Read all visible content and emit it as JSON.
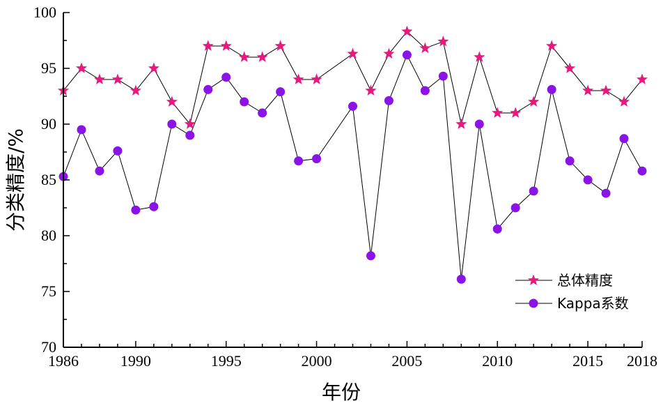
{
  "chart_data": {
    "type": "line",
    "title": "",
    "xlabel": "年份",
    "ylabel": "分类精度/%",
    "xlim": [
      1986,
      2018
    ],
    "ylim": [
      70,
      100
    ],
    "x_ticks": [
      1986,
      1990,
      1995,
      2000,
      2005,
      2010,
      2015,
      2018
    ],
    "y_ticks": [
      70,
      75,
      80,
      85,
      90,
      95,
      100
    ],
    "grid": false,
    "legend_position": "bottom-right",
    "series": [
      {
        "name": "总体精度",
        "marker": "star",
        "color": "#e8197d",
        "points": [
          [
            1986,
            93
          ],
          [
            1987,
            95
          ],
          [
            1988,
            94
          ],
          [
            1989,
            94
          ],
          [
            1990,
            93
          ],
          [
            1991,
            95
          ],
          [
            1992,
            92
          ],
          [
            1993,
            90
          ],
          [
            1994,
            97
          ],
          [
            1995,
            97
          ],
          [
            1996,
            96
          ],
          [
            1997,
            96
          ],
          [
            1998,
            97
          ],
          [
            1999,
            94
          ],
          [
            2000,
            94
          ],
          [
            2002,
            96.3
          ],
          [
            2003,
            93
          ],
          [
            2004,
            96.3
          ],
          [
            2005,
            98.3
          ],
          [
            2006,
            96.8
          ],
          [
            2007,
            97.4
          ],
          [
            2008,
            90
          ],
          [
            2009,
            96
          ],
          [
            2010,
            91
          ],
          [
            2011,
            91
          ],
          [
            2012,
            92
          ],
          [
            2013,
            97
          ],
          [
            2014,
            95
          ],
          [
            2015,
            93
          ],
          [
            2016,
            93
          ],
          [
            2017,
            92
          ],
          [
            2018,
            94
          ]
        ]
      },
      {
        "name": "Kappa系数",
        "marker": "circle",
        "color": "#8a14e6",
        "points": [
          [
            1986,
            85.3
          ],
          [
            1987,
            89.5
          ],
          [
            1988,
            85.8
          ],
          [
            1989,
            87.6
          ],
          [
            1990,
            82.3
          ],
          [
            1991,
            82.6
          ],
          [
            1992,
            90
          ],
          [
            1993,
            89
          ],
          [
            1994,
            93.1
          ],
          [
            1995,
            94.2
          ],
          [
            1996,
            92
          ],
          [
            1997,
            91
          ],
          [
            1998,
            92.9
          ],
          [
            1999,
            86.7
          ],
          [
            2000,
            86.9
          ],
          [
            2002,
            91.6
          ],
          [
            2003,
            78.2
          ],
          [
            2004,
            92.1
          ],
          [
            2005,
            96.2
          ],
          [
            2006,
            93
          ],
          [
            2007,
            94.3
          ],
          [
            2008,
            76.1
          ],
          [
            2009,
            90
          ],
          [
            2010,
            80.6
          ],
          [
            2011,
            82.5
          ],
          [
            2012,
            84
          ],
          [
            2013,
            93.1
          ],
          [
            2014,
            86.7
          ],
          [
            2015,
            85
          ],
          [
            2016,
            83.8
          ],
          [
            2017,
            88.7
          ],
          [
            2018,
            85.8
          ]
        ]
      }
    ]
  }
}
